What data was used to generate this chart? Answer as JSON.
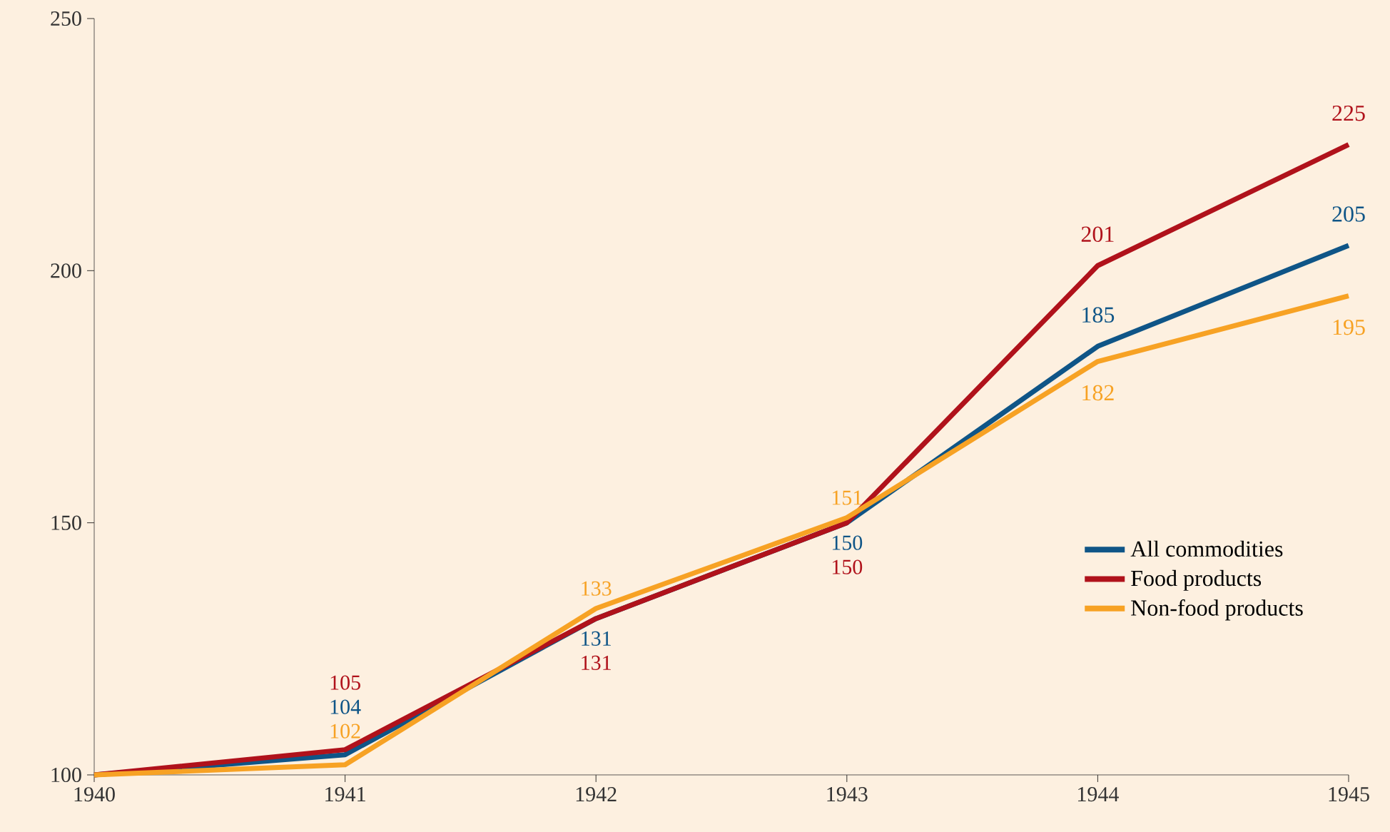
{
  "chart_data": {
    "type": "line",
    "x": [
      1940,
      1941,
      1942,
      1943,
      1944,
      1945
    ],
    "xlim": [
      1940,
      1945
    ],
    "xticks": [
      1940,
      1941,
      1942,
      1943,
      1944,
      1945
    ],
    "ylim": [
      100,
      250
    ],
    "yticks": [
      100,
      150,
      200,
      250
    ],
    "grid": false,
    "legend": "bottom right",
    "line_style": "solid",
    "series": [
      {
        "name": "All commodities",
        "color": "#0f5587",
        "values": [
          100,
          104,
          131,
          150,
          185,
          205
        ],
        "value_labels": [
          null,
          "104",
          "131",
          "150",
          "185",
          "205"
        ]
      },
      {
        "name": "Food products",
        "color": "#b0121b",
        "values": [
          100,
          105,
          131,
          150,
          201,
          225
        ],
        "value_labels": [
          null,
          "105",
          "131",
          "150",
          "201",
          "225"
        ]
      },
      {
        "name": "Non-food products",
        "color": "#f7a224",
        "values": [
          100,
          102,
          133,
          151,
          182,
          195
        ],
        "value_labels": [
          null,
          "102",
          "133",
          "151",
          "182",
          "195"
        ]
      }
    ]
  }
}
